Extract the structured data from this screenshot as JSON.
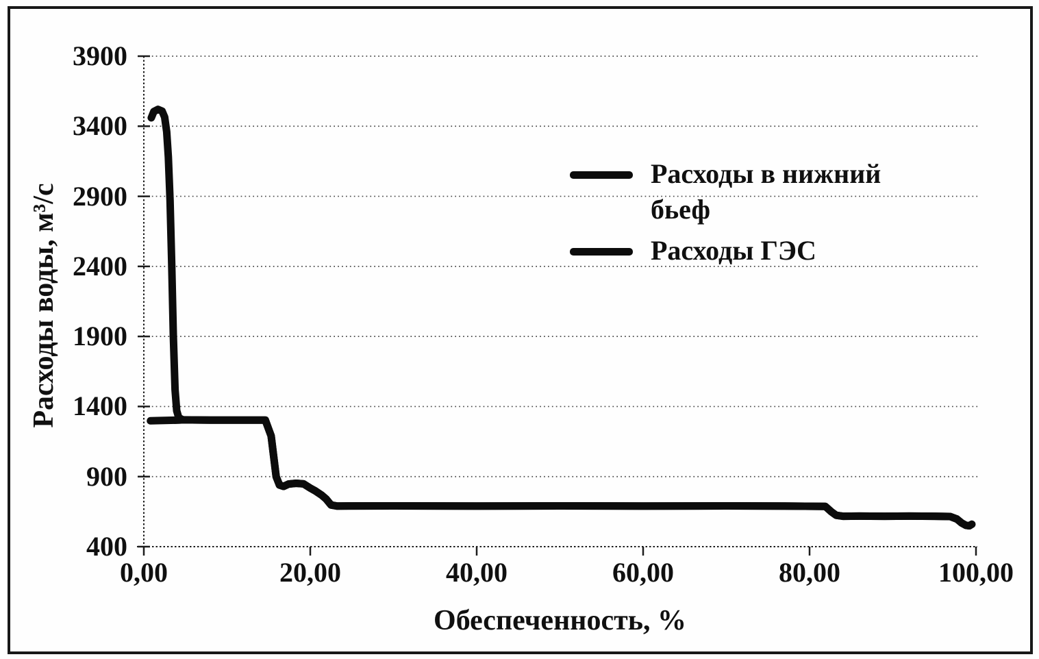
{
  "figure": {
    "background_color": "#ffffff",
    "border_color": "#181818",
    "line_color": "#0c0c0c",
    "gridline_color": "#474747",
    "axis_color": "#1c1c1c"
  },
  "chart_data": {
    "type": "line",
    "title": "",
    "xlabel": "Обеспеченность, %",
    "ylabel": "Расходы воды, м³/с",
    "xlim": [
      0,
      100
    ],
    "ylim": [
      400,
      3900
    ],
    "x_ticks": [
      0,
      20,
      40,
      60,
      80,
      100
    ],
    "x_tick_labels": [
      "0,00",
      "20,00",
      "40,00",
      "60,00",
      "80,00",
      "100,00"
    ],
    "y_ticks": [
      400,
      900,
      1400,
      1900,
      2400,
      2900,
      3400,
      3900
    ],
    "y_tick_labels": [
      "400",
      "900",
      "1400",
      "1900",
      "2400",
      "2900",
      "3400",
      "3900"
    ],
    "grid": "horizontal-dotted",
    "legend_position": "inside-upper-right",
    "line_width": 11,
    "series": [
      {
        "name": "Расходы в нижний бьеф",
        "points": [
          [
            0.9,
            3460
          ],
          [
            1.2,
            3505
          ],
          [
            1.7,
            3520
          ],
          [
            2.2,
            3508
          ],
          [
            2.5,
            3465
          ],
          [
            2.75,
            3360
          ],
          [
            2.95,
            3180
          ],
          [
            3.15,
            2870
          ],
          [
            3.35,
            2420
          ],
          [
            3.55,
            1900
          ],
          [
            3.75,
            1520
          ],
          [
            3.95,
            1370
          ],
          [
            4.2,
            1320
          ],
          [
            4.7,
            1305
          ],
          [
            8,
            1303
          ],
          [
            12,
            1303
          ],
          [
            14.6,
            1303
          ],
          [
            15.3,
            1190
          ],
          [
            15.9,
            900
          ],
          [
            16.3,
            840
          ],
          [
            16.8,
            830
          ],
          [
            17.4,
            847
          ],
          [
            18.3,
            852
          ],
          [
            19.2,
            848
          ],
          [
            20.0,
            818
          ],
          [
            20.6,
            798
          ],
          [
            21.4,
            766
          ],
          [
            21.9,
            740
          ],
          [
            22.5,
            697
          ],
          [
            23.2,
            690
          ],
          [
            30,
            691
          ],
          [
            40,
            690
          ],
          [
            50,
            691
          ],
          [
            60,
            690
          ],
          [
            70,
            691
          ],
          [
            77,
            690
          ],
          [
            81.9,
            687
          ],
          [
            82.6,
            650
          ],
          [
            83.2,
            624
          ],
          [
            84,
            617
          ],
          [
            86,
            618
          ],
          [
            89,
            617
          ],
          [
            92,
            618
          ],
          [
            95,
            617
          ],
          [
            96.9,
            615
          ],
          [
            97.7,
            597
          ],
          [
            98.3,
            568
          ],
          [
            98.8,
            552
          ],
          [
            99.2,
            549
          ],
          [
            99.5,
            560
          ]
        ]
      },
      {
        "name": "Расходы ГЭС",
        "points": [
          [
            0.8,
            1298
          ],
          [
            2.0,
            1300
          ],
          [
            4.2,
            1303
          ],
          [
            4.7,
            1305
          ],
          [
            8,
            1303
          ],
          [
            12,
            1303
          ],
          [
            14.6,
            1303
          ],
          [
            15.3,
            1190
          ],
          [
            15.9,
            900
          ],
          [
            16.3,
            840
          ],
          [
            16.8,
            830
          ],
          [
            17.4,
            847
          ],
          [
            18.3,
            852
          ],
          [
            19.2,
            848
          ],
          [
            20.0,
            818
          ],
          [
            20.6,
            798
          ],
          [
            21.4,
            766
          ],
          [
            21.9,
            740
          ],
          [
            22.5,
            697
          ],
          [
            23.2,
            690
          ],
          [
            30,
            691
          ],
          [
            40,
            690
          ],
          [
            50,
            691
          ],
          [
            60,
            690
          ],
          [
            70,
            691
          ],
          [
            77,
            690
          ],
          [
            81.9,
            687
          ],
          [
            82.6,
            650
          ],
          [
            83.2,
            624
          ],
          [
            84,
            617
          ],
          [
            86,
            618
          ],
          [
            89,
            617
          ],
          [
            92,
            618
          ],
          [
            95,
            617
          ],
          [
            96.9,
            615
          ],
          [
            97.7,
            597
          ],
          [
            98.3,
            568
          ],
          [
            98.8,
            552
          ],
          [
            99.2,
            549
          ],
          [
            99.5,
            560
          ]
        ]
      }
    ]
  }
}
